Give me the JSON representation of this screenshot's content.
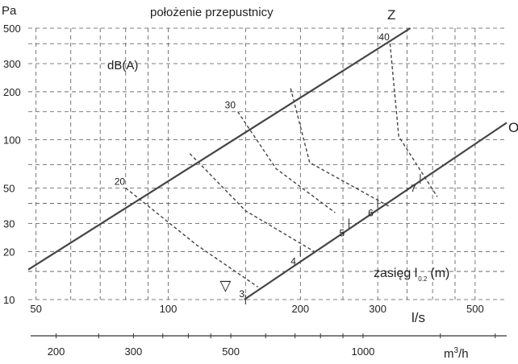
{
  "chart_data": {
    "type": "line",
    "scale": "log-log",
    "title": "położenie przepustnicy",
    "xlabel": "l/s",
    "x2label": "m³/h",
    "ylabel": "Pa",
    "xlim": [
      48,
      590
    ],
    "ylim": [
      10,
      500
    ],
    "x_ticks": [
      50,
      100,
      200,
      300,
      500
    ],
    "y_ticks": [
      10,
      20,
      30,
      50,
      100,
      200,
      300,
      500
    ],
    "x2_ticks": [
      200,
      300,
      500,
      1000
    ],
    "x_grid": [
      50,
      60,
      70,
      80,
      90,
      100,
      150,
      200,
      250,
      300,
      350,
      400,
      450,
      500
    ],
    "y_grid": [
      10,
      15,
      20,
      30,
      40,
      50,
      70,
      100,
      150,
      200,
      300,
      400,
      500
    ],
    "x2_minor_ticks": [
      200,
      250,
      300,
      350,
      400,
      450,
      500,
      600,
      700,
      800,
      900,
      1000,
      1500,
      2000
    ],
    "grid": true,
    "damper_lines": [
      {
        "label": "Z",
        "x": [
          48,
          356
        ],
        "y": [
          15.4,
          500
        ]
      },
      {
        "label": "O",
        "x": [
          149,
          590
        ],
        "y": [
          10,
          128
        ]
      }
    ],
    "noise_label": "dB(A)",
    "noise_curves": [
      {
        "label": "20",
        "x": [
          80,
          116,
          160
        ],
        "y": [
          50,
          22,
          12
        ]
      },
      {
        "label": "30",
        "x": [
          144,
          176,
          240
        ],
        "y": [
          150,
          66,
          35
        ]
      },
      {
        "label": "40",
        "x": [
          320,
          335,
          410
        ],
        "y": [
          400,
          105,
          44
        ]
      }
    ],
    "interior_noise_lines": [
      {
        "x": [
          112,
          150,
          215
        ],
        "y": [
          82,
          36,
          20
        ]
      },
      {
        "x": [
          190,
          210,
          320
        ],
        "y": [
          210,
          72,
          38
        ]
      }
    ],
    "throw_label": "zasięg l",
    "throw_subscript": "0.2",
    "throw_unit": "(m)",
    "throw_marks": [
      {
        "label": "3",
        "x": 150,
        "y": 10
      },
      {
        "label": "4",
        "x": 200,
        "y": 20
      },
      {
        "label": "5",
        "x": 258,
        "y": 30
      },
      {
        "label": "6",
        "x": 300,
        "y": 40
      },
      {
        "label": "7",
        "x": 375,
        "y": 57
      }
    ],
    "marker": {
      "symbol": "▽",
      "x": 135,
      "y": 12
    }
  }
}
